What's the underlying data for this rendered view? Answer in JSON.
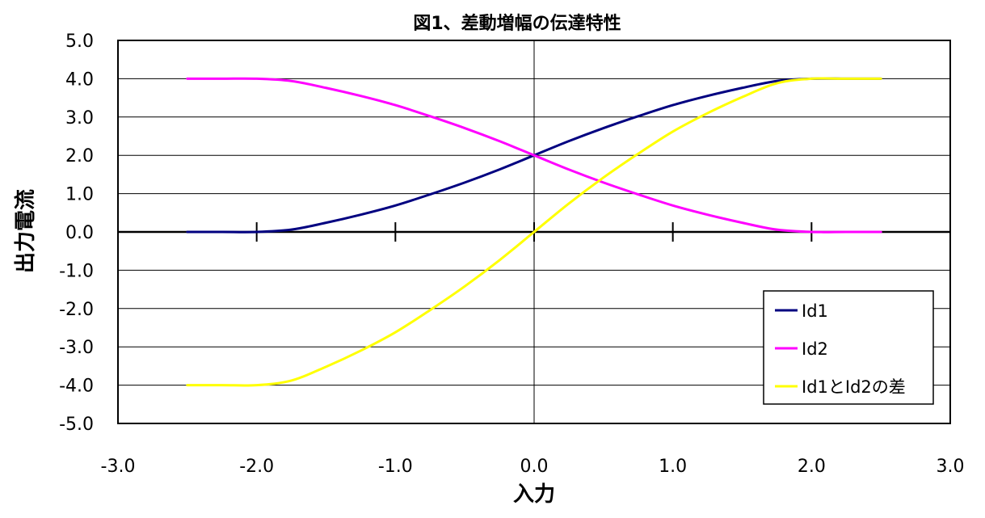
{
  "chart_data": {
    "type": "line",
    "title": "図1、差動増幅の伝達特性",
    "xlabel": "入力",
    "ylabel": "出力電流",
    "xlim": [
      -3.0,
      3.0
    ],
    "ylim": [
      -5.0,
      5.0
    ],
    "x_ticks": [
      "-3.0",
      "-2.0",
      "-1.0",
      "0.0",
      "1.0",
      "2.0",
      "3.0"
    ],
    "y_ticks": [
      "5.0",
      "4.0",
      "3.0",
      "2.0",
      "1.0",
      "0.0",
      "-1.0",
      "-2.0",
      "-3.0",
      "-4.0",
      "-5.0"
    ],
    "grid": "horizontal",
    "legend_position": "bottom-right",
    "x": [
      -2.5,
      -2.25,
      -2.0,
      -1.75,
      -1.5,
      -1.25,
      -1.0,
      -0.75,
      -0.5,
      -0.25,
      0.0,
      0.25,
      0.5,
      0.75,
      1.0,
      1.25,
      1.5,
      1.75,
      2.0,
      2.25,
      2.5
    ],
    "series": [
      {
        "name": "Id1",
        "color": "#000080",
        "values": [
          0.0,
          0.0,
          0.0,
          0.06,
          0.24,
          0.45,
          0.69,
          0.98,
          1.29,
          1.63,
          2.0,
          2.37,
          2.71,
          3.02,
          3.31,
          3.55,
          3.76,
          3.94,
          4.0,
          4.0,
          4.0
        ]
      },
      {
        "name": "Id2",
        "color": "#ff00ff",
        "values": [
          4.0,
          4.0,
          4.0,
          3.94,
          3.76,
          3.55,
          3.31,
          3.02,
          2.71,
          2.37,
          2.0,
          1.63,
          1.29,
          0.98,
          0.69,
          0.45,
          0.24,
          0.06,
          0.0,
          0.0,
          0.0
        ]
      },
      {
        "name": "Id1とId2の差",
        "color": "#ffff00",
        "values": [
          -4.0,
          -4.0,
          -4.0,
          -3.88,
          -3.52,
          -3.1,
          -2.62,
          -2.04,
          -1.42,
          -0.74,
          0.0,
          0.74,
          1.42,
          2.04,
          2.62,
          3.1,
          3.52,
          3.88,
          4.0,
          4.0,
          4.0
        ]
      }
    ]
  }
}
